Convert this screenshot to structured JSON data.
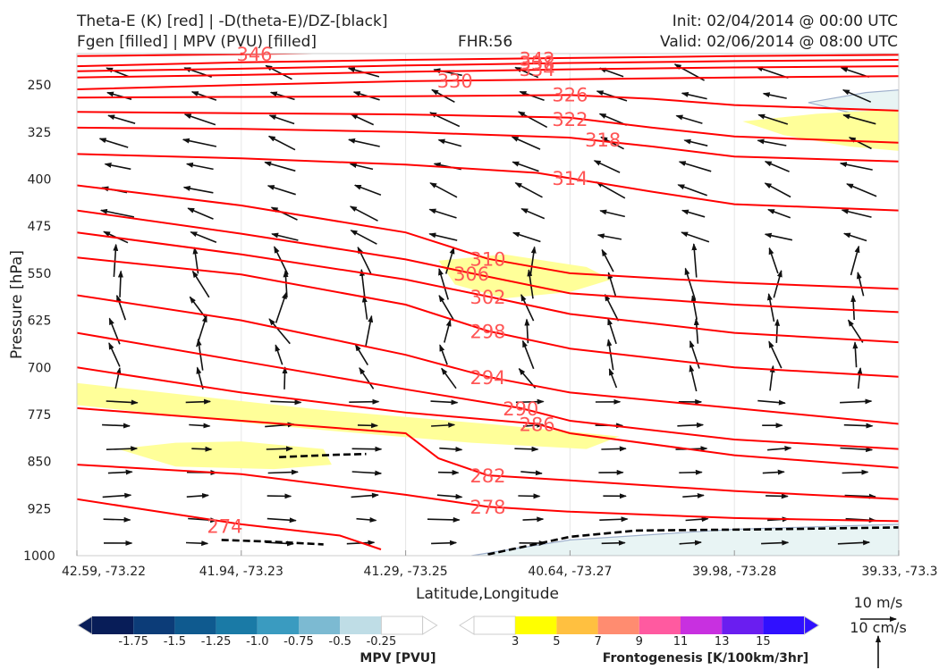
{
  "header": {
    "line1_left": "Theta-E (K) [red] | -D(theta-E)/DZ-[black]",
    "line2_left": "Fgen [filled] | MPV (PVU) [filled]",
    "fhr": "FHR:56",
    "init": "Init: 02/04/2014 @ 00:00 UTC",
    "valid": "Valid: 02/06/2014 @ 08:00 UTC"
  },
  "colors": {
    "theta_e": "#ff0000",
    "theta_e_label": "#ff5555",
    "fgen_3_5": "#ffff99",
    "mpv_light": "#e8f4f4",
    "mpv_edge": "#9fb0cc",
    "barb": "#111111",
    "dashed": "#000000"
  },
  "chart_data": {
    "type": "cross-section",
    "xlabel": "Latitude,Longitude",
    "ylabel": "Pressure [hPa]",
    "x_tick_labels": [
      "42.59, -73.22",
      "41.94, -73.23",
      "41.29, -73.25",
      "40.64, -73.27",
      "39.98, -73.28",
      "39.33, -73.3"
    ],
    "x_ticks": [
      0,
      1,
      2,
      3,
      4,
      5
    ],
    "xlim": [
      0,
      5
    ],
    "y_ticks": [
      250,
      325,
      400,
      475,
      550,
      625,
      700,
      775,
      850,
      925,
      1000
    ],
    "ylim": [
      1000,
      200
    ],
    "theta_e_contours": [
      {
        "level": 346,
        "label": "346",
        "label_at": [
          1.08,
          200
        ],
        "points": [
          [
            0,
            204
          ],
          [
            1,
            201
          ],
          [
            2,
            197
          ],
          [
            3,
            195
          ],
          [
            4,
            193
          ],
          [
            5,
            192
          ]
        ]
      },
      {
        "level": 342,
        "label": "342",
        "label_at": [
          2.8,
          208
        ],
        "points": [
          [
            0,
            220
          ],
          [
            1,
            214
          ],
          [
            2,
            210
          ],
          [
            3,
            207
          ],
          [
            4,
            204
          ],
          [
            5,
            202
          ]
        ]
      },
      {
        "level": 338,
        "label": "338",
        "label_at": [
          2.8,
          214
        ],
        "points": [
          [
            0,
            228
          ],
          [
            1,
            224
          ],
          [
            2,
            219
          ],
          [
            3,
            215
          ],
          [
            4,
            212
          ],
          [
            5,
            210
          ]
        ]
      },
      {
        "level": 334,
        "label": "334",
        "label_at": [
          2.8,
          224
        ],
        "points": [
          [
            0,
            238
          ],
          [
            1,
            234
          ],
          [
            2,
            229
          ],
          [
            3,
            225
          ],
          [
            4,
            222
          ],
          [
            5,
            220
          ]
        ]
      },
      {
        "level": 330,
        "label": "330",
        "label_at": [
          2.3,
          243
        ],
        "points": [
          [
            0,
            257
          ],
          [
            1,
            250
          ],
          [
            2,
            244
          ],
          [
            3,
            241
          ],
          [
            4,
            238
          ],
          [
            5,
            236
          ]
        ]
      },
      {
        "level": 326,
        "label": "326",
        "label_at": [
          3.0,
          265
        ],
        "points": [
          [
            0,
            270
          ],
          [
            1,
            269
          ],
          [
            2,
            268
          ],
          [
            3,
            266
          ],
          [
            3.5,
            272
          ],
          [
            4,
            282
          ],
          [
            5,
            291
          ]
        ]
      },
      {
        "level": 322,
        "label": "322",
        "label_at": [
          3.0,
          304
        ],
        "points": [
          [
            0,
            293
          ],
          [
            1,
            295
          ],
          [
            2,
            297
          ],
          [
            3,
            302
          ],
          [
            3.5,
            318
          ],
          [
            4,
            332
          ],
          [
            5,
            342
          ]
        ]
      },
      {
        "level": 318,
        "label": "318",
        "label_at": [
          3.2,
          337
        ],
        "points": [
          [
            0,
            318
          ],
          [
            1,
            320
          ],
          [
            2,
            325
          ],
          [
            3,
            334
          ],
          [
            3.5,
            348
          ],
          [
            4,
            364
          ],
          [
            5,
            372
          ]
        ]
      },
      {
        "level": 314,
        "label": "314",
        "label_at": [
          3.0,
          398
        ],
        "points": [
          [
            0,
            360
          ],
          [
            1,
            367
          ],
          [
            2,
            377
          ],
          [
            2.8,
            390
          ],
          [
            3.5,
            420
          ],
          [
            4,
            440
          ],
          [
            5,
            450
          ]
        ]
      },
      {
        "level": 310,
        "label": "310",
        "label_at": [
          2.5,
          527
        ],
        "points": [
          [
            0,
            410
          ],
          [
            1,
            442
          ],
          [
            2,
            485
          ],
          [
            2.5,
            527
          ],
          [
            3,
            550
          ],
          [
            4,
            565
          ],
          [
            5,
            575
          ]
        ]
      },
      {
        "level": 306,
        "label": "306",
        "label_at": [
          2.4,
          550
        ],
        "points": [
          [
            0,
            450
          ],
          [
            1,
            487
          ],
          [
            2,
            528
          ],
          [
            2.4,
            550
          ],
          [
            3,
            582
          ],
          [
            4,
            600
          ],
          [
            5,
            612
          ]
        ]
      },
      {
        "level": 302,
        "label": "302",
        "label_at": [
          2.5,
          587
        ],
        "points": [
          [
            0,
            485
          ],
          [
            1,
            520
          ],
          [
            2,
            560
          ],
          [
            2.5,
            587
          ],
          [
            3,
            615
          ],
          [
            4,
            645
          ],
          [
            5,
            660
          ]
        ]
      },
      {
        "level": 298,
        "label": "298",
        "label_at": [
          2.5,
          642
        ],
        "points": [
          [
            0,
            525
          ],
          [
            1,
            552
          ],
          [
            2,
            600
          ],
          [
            2.5,
            642
          ],
          [
            3,
            670
          ],
          [
            4,
            700
          ],
          [
            5,
            715
          ]
        ]
      },
      {
        "level": 294,
        "label": "294",
        "label_at": [
          2.5,
          715
        ],
        "points": [
          [
            0,
            585
          ],
          [
            1,
            625
          ],
          [
            2,
            680
          ],
          [
            2.5,
            715
          ],
          [
            3,
            740
          ],
          [
            4,
            765
          ],
          [
            5,
            790
          ]
        ]
      },
      {
        "level": 290,
        "label": "290",
        "label_at": [
          2.7,
          765
        ],
        "points": [
          [
            0,
            645
          ],
          [
            1,
            690
          ],
          [
            2,
            735
          ],
          [
            2.7,
            765
          ],
          [
            3,
            785
          ],
          [
            4,
            815
          ],
          [
            5,
            830
          ]
        ]
      },
      {
        "level": 286,
        "label": "286",
        "label_at": [
          2.8,
          790
        ],
        "points": [
          [
            0,
            700
          ],
          [
            1,
            740
          ],
          [
            2,
            772
          ],
          [
            2.8,
            790
          ],
          [
            3,
            805
          ],
          [
            4,
            840
          ],
          [
            5,
            860
          ]
        ]
      },
      {
        "level": 282,
        "label": "282",
        "label_at": [
          2.5,
          872
        ],
        "points": [
          [
            0,
            765
          ],
          [
            1,
            785
          ],
          [
            2,
            805
          ],
          [
            2.2,
            845
          ],
          [
            2.5,
            872
          ],
          [
            3,
            880
          ],
          [
            4,
            897
          ],
          [
            5,
            910
          ]
        ]
      },
      {
        "level": 278,
        "label": "278",
        "label_at": [
          2.5,
          922
        ],
        "points": [
          [
            0,
            855
          ],
          [
            1,
            870
          ],
          [
            2,
            903
          ],
          [
            2.5,
            922
          ],
          [
            3,
            930
          ],
          [
            4,
            940
          ],
          [
            5,
            945
          ]
        ]
      },
      {
        "level": 274,
        "label": "274",
        "label_at": [
          0.9,
          952
        ],
        "points": [
          [
            0,
            910
          ],
          [
            1,
            950
          ],
          [
            1.6,
            968
          ],
          [
            1.85,
            990
          ]
        ]
      }
    ],
    "fgen_filled": [
      {
        "range": "3-5",
        "points": [
          [
            0,
            725
          ],
          [
            0.7,
            745
          ],
          [
            1.5,
            768
          ],
          [
            2.5,
            790
          ],
          [
            3.3,
            810
          ],
          [
            3.1,
            830
          ],
          [
            2.4,
            820
          ],
          [
            1.5,
            800
          ],
          [
            0.7,
            780
          ],
          [
            0,
            760
          ]
        ]
      },
      {
        "range": "3-5",
        "points": [
          [
            0.25,
            830
          ],
          [
            0.6,
            820
          ],
          [
            1.0,
            818
          ],
          [
            1.5,
            830
          ],
          [
            1.55,
            855
          ],
          [
            1.2,
            862
          ],
          [
            0.6,
            858
          ]
        ]
      },
      {
        "range": "3-5",
        "points": [
          [
            2.2,
            530
          ],
          [
            2.6,
            520
          ],
          [
            3.1,
            540
          ],
          [
            3.25,
            560
          ],
          [
            3.0,
            580
          ],
          [
            2.6,
            590
          ],
          [
            2.3,
            568
          ]
        ]
      },
      {
        "range": "3-5",
        "points": [
          [
            4.05,
            308
          ],
          [
            4.5,
            296
          ],
          [
            4.9,
            290
          ],
          [
            5,
            290
          ],
          [
            5,
            355
          ],
          [
            4.7,
            348
          ],
          [
            4.3,
            330
          ]
        ]
      }
    ],
    "mpv_filled": [
      {
        "range": "-0.25-0",
        "points": [
          [
            4.45,
            278
          ],
          [
            4.8,
            262
          ],
          [
            5,
            258
          ],
          [
            5,
            315
          ],
          [
            4.8,
            300
          ]
        ]
      },
      {
        "range": "-0.25-0",
        "points": [
          [
            2.4,
            1000
          ],
          [
            3.0,
            975
          ],
          [
            4.0,
            958
          ],
          [
            5,
            950
          ],
          [
            5,
            1000
          ]
        ]
      }
    ],
    "stability_dashed": [
      {
        "points": [
          [
            1.23,
            843
          ],
          [
            1.6,
            839
          ],
          [
            1.76,
            838
          ]
        ]
      },
      {
        "points": [
          [
            0.88,
            975
          ],
          [
            1.2,
            978
          ],
          [
            1.5,
            982
          ]
        ]
      },
      {
        "points": [
          [
            2.5,
            998
          ],
          [
            3.0,
            970
          ],
          [
            3.4,
            960
          ],
          [
            4.2,
            958
          ],
          [
            5,
            955
          ]
        ]
      }
    ],
    "wind_vectors_note": "arrows show along-section circulation",
    "mpv_colorbar": {
      "title": "MPV [PVU]",
      "tick_labels": [
        "-1.75",
        "-1.5",
        "-1.25",
        "-1.0",
        "-0.75",
        "-0.5",
        "-0.25"
      ],
      "colors": [
        "#081d58",
        "#0c3c78",
        "#0f5a8f",
        "#1a7aa6",
        "#3a9bc0",
        "#7cbad2",
        "#bfdde6",
        "#ffffff"
      ]
    },
    "fgen_colorbar": {
      "title": "Frontogenesis [K/100km/3hr]",
      "tick_labels": [
        "3",
        "5",
        "7",
        "9",
        "11",
        "13",
        "15"
      ],
      "colors": [
        "#ffffff",
        "#ffff00",
        "#ffc040",
        "#ff8c70",
        "#ff5aa0",
        "#c830e0",
        "#6a1ef0",
        "#3010ff"
      ]
    },
    "reference_vectors": {
      "horizontal": "10 m/s",
      "vertical": "10 cm/s"
    }
  }
}
